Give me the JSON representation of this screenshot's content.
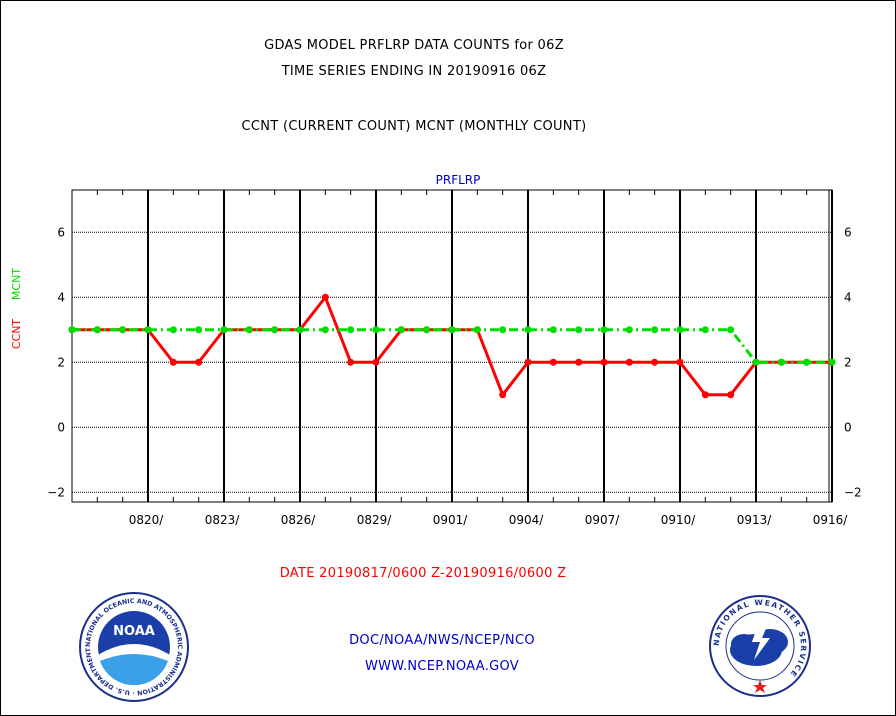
{
  "header": {
    "line1": "GDAS MODEL PRFLRP DATA COUNTS for 06Z",
    "line2": "TIME SERIES ENDING IN 20190916 06Z",
    "line3": "CCNT (CURRENT COUNT) MCNT (MONTHLY COUNT)"
  },
  "footer": {
    "date_range": "DATE 20190817/0600 Z-20190916/0600 Z",
    "org": "DOC/NOAA/NWS/NCEP/NCO",
    "url": "WWW.NCEP.NOAA.GOV"
  },
  "logos": {
    "noaa": "NOAA",
    "noaa_ring": "NATIONAL OCEANIC AND ATMOSPHERIC ADMINISTRATION · U.S. DEPARTMENT OF COMMERCE",
    "nws_ring": "NATIONAL WEATHER SERVICE"
  },
  "colors": {
    "ccnt": "#ff0000",
    "mcnt": "#00dd00",
    "title_blue": "#0000cc",
    "grid": "#000000"
  },
  "chart_data": {
    "type": "line",
    "title": "PRFLRP",
    "ylabel_left": "CCNT",
    "ylabel_right": "MCNT",
    "ylim": [
      -2.3,
      7.3
    ],
    "yticks": [
      -2,
      0,
      2,
      4,
      6
    ],
    "x_days": [
      "0817",
      "0818",
      "0819",
      "0820",
      "0821",
      "0822",
      "0823",
      "0824",
      "0825",
      "0826",
      "0827",
      "0828",
      "0829",
      "0830",
      "0831",
      "0901",
      "0902",
      "0903",
      "0904",
      "0905",
      "0906",
      "0907",
      "0908",
      "0909",
      "0910",
      "0911",
      "0912",
      "0913",
      "0914",
      "0915",
      "0916"
    ],
    "xtick_labels": [
      "0820/",
      "0823/",
      "0826/",
      "0829/",
      "0901/",
      "0904/",
      "0907/",
      "0910/",
      "0913/",
      "0916/"
    ],
    "grid": true,
    "series": [
      {
        "name": "CCNT",
        "color": "#ff0000",
        "style": "solid",
        "values": [
          3,
          3,
          3,
          3,
          2,
          2,
          3,
          3,
          3,
          3,
          4,
          2,
          2,
          3,
          3,
          3,
          3,
          1,
          2,
          2,
          2,
          2,
          2,
          2,
          2,
          1,
          1,
          2,
          2,
          2,
          2
        ]
      },
      {
        "name": "MCNT",
        "color": "#00dd00",
        "style": "dashdot",
        "values": [
          3,
          3,
          3,
          3,
          3,
          3,
          3,
          3,
          3,
          3,
          3,
          3,
          3,
          3,
          3,
          3,
          3,
          3,
          3,
          3,
          3,
          3,
          3,
          3,
          3,
          3,
          3,
          2,
          2,
          2,
          2
        ]
      }
    ]
  }
}
